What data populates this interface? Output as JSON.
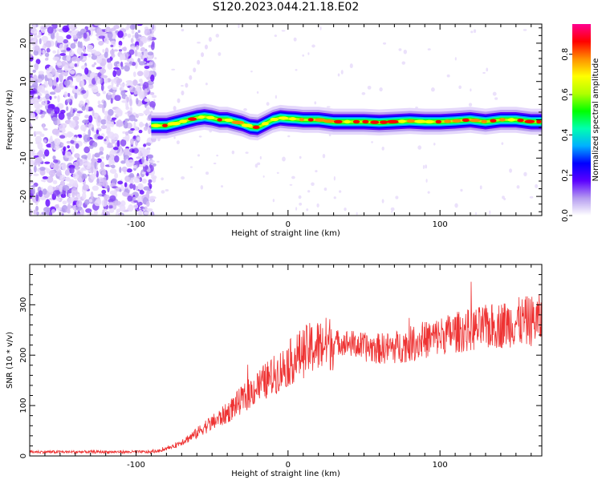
{
  "title": "S120.2023.044.21.18.E02",
  "chart_data": [
    {
      "type": "heatmap",
      "name": "spectrogram",
      "xlabel": "Height of straight line (km)",
      "ylabel": "Frequency (Hz)",
      "xlim": [
        -170,
        167
      ],
      "ylim": [
        -25,
        25
      ],
      "xticks": [
        -100,
        0,
        100
      ],
      "yticks": [
        -20,
        -10,
        0,
        10,
        20
      ],
      "grid": false,
      "noise_region_x": [
        -170,
        -88
      ],
      "signal_start_x": -90,
      "signal_ridge": {
        "x": [
          -90,
          -85,
          -80,
          -75,
          -70,
          -65,
          -60,
          -55,
          -50,
          -45,
          -40,
          -35,
          -30,
          -25,
          -20,
          -15,
          -10,
          -5,
          0,
          5,
          10,
          20,
          30,
          40,
          50,
          60,
          70,
          80,
          90,
          100,
          110,
          120,
          130,
          140,
          150,
          160,
          167
        ],
        "frequency": [
          -1.5,
          -1.5,
          -1.5,
          -1,
          -0.5,
          0,
          0.5,
          0.8,
          0.5,
          0,
          0,
          -0.5,
          -1,
          -1.8,
          -2,
          -1,
          0,
          0.5,
          0.3,
          0.2,
          0,
          0,
          -0.5,
          -0.5,
          -0.5,
          -0.7,
          -0.5,
          -0.3,
          -0.5,
          -0.5,
          -0.3,
          0,
          -0.5,
          0,
          0,
          -0.5,
          -0.5
        ]
      },
      "colorbar": {
        "label": "Normalized spectral amplitude",
        "range": [
          0,
          0.95
        ],
        "ticks": [
          0.0,
          0.2,
          0.4,
          0.6,
          0.8
        ],
        "tick_labels": [
          "0.0",
          "0.2",
          "0.4",
          "0.6",
          "0.8"
        ],
        "colormap": [
          "#ffffff",
          "#b59cf0",
          "#5b00ff",
          "#0000ff",
          "#00b0ff",
          "#00ffb0",
          "#00ff00",
          "#b0ff00",
          "#ffff00",
          "#ff9000",
          "#ff0000",
          "#ff0090"
        ]
      }
    },
    {
      "type": "line",
      "name": "snr",
      "xlabel": "Height of straight line (km)",
      "ylabel": "SNR (10 * v/v)",
      "xlim": [
        -170,
        167
      ],
      "ylim": [
        0,
        380
      ],
      "xticks": [
        -100,
        0,
        100
      ],
      "yticks": [
        0,
        100,
        200,
        300
      ],
      "grid": false,
      "color": "#ee3333",
      "series": [
        {
          "x": [
            -170,
            -140,
            -110,
            -95,
            -90,
            -85,
            -80,
            -75,
            -70,
            -65,
            -60,
            -55,
            -50,
            -45,
            -40,
            -35,
            -30,
            -25,
            -20,
            -15,
            -10,
            -5,
            0,
            5,
            10,
            15,
            20,
            25,
            30,
            35,
            40,
            45,
            50,
            55,
            60,
            70,
            80,
            90,
            100,
            110,
            120,
            130,
            140,
            150,
            160,
            167
          ],
          "values": [
            8,
            8,
            8,
            8,
            8,
            10,
            14,
            20,
            28,
            36,
            45,
            58,
            65,
            75,
            85,
            100,
            112,
            125,
            137,
            148,
            158,
            170,
            182,
            195,
            205,
            213,
            218,
            222,
            225,
            226,
            224,
            220,
            216,
            214,
            213,
            215,
            222,
            230,
            238,
            245,
            250,
            255,
            260,
            265,
            268,
            270
          ]
        }
      ]
    }
  ]
}
